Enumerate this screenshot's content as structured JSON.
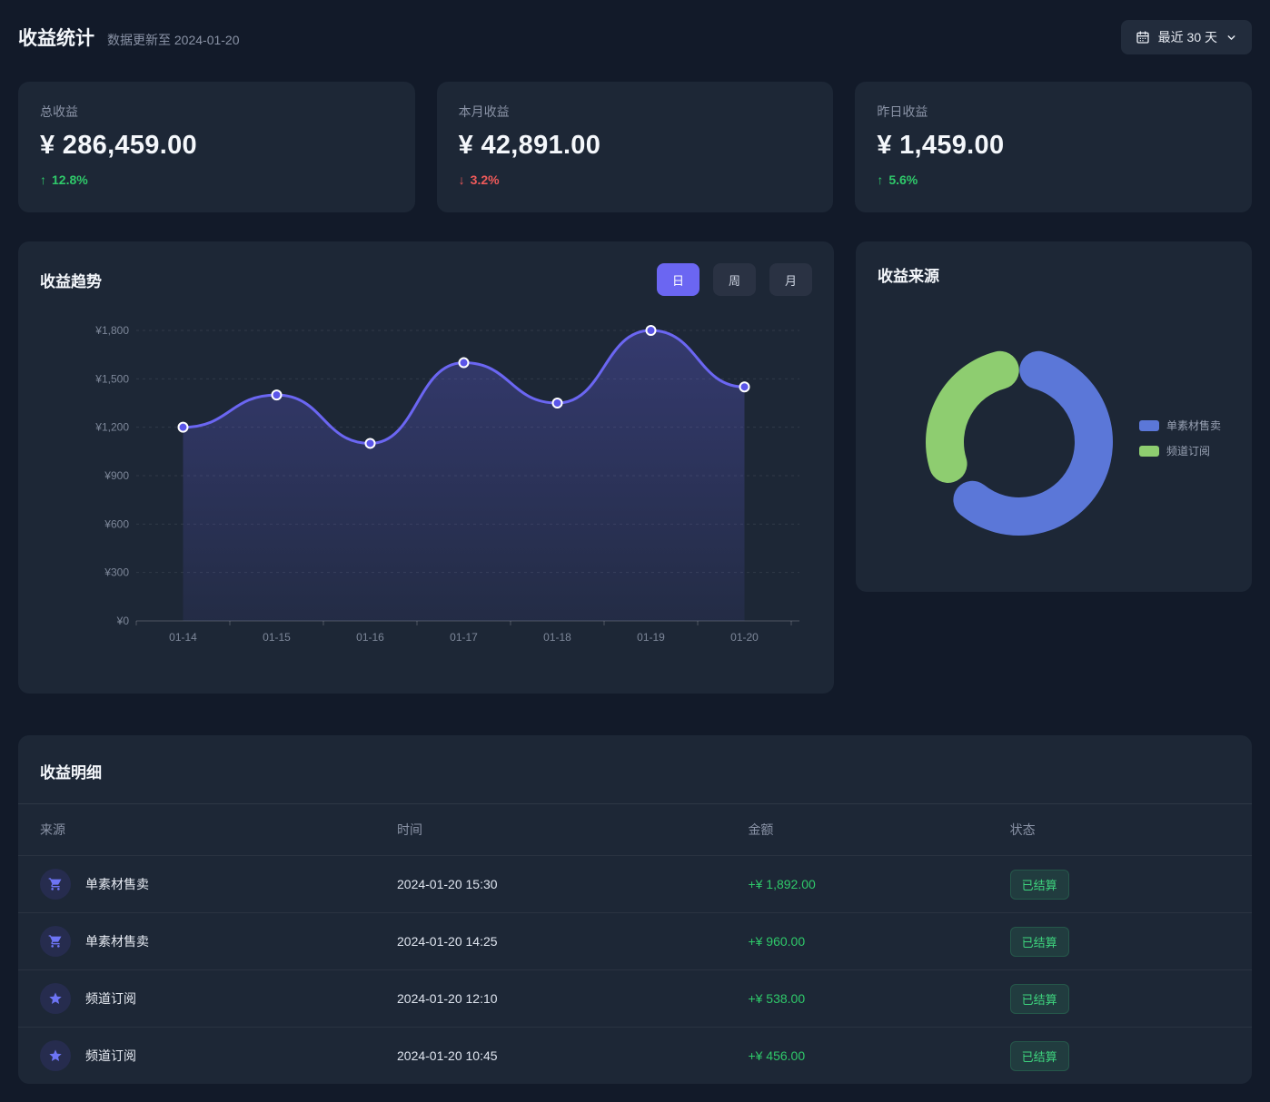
{
  "header": {
    "title": "收益统计",
    "subtitle": "数据更新至 2024-01-20",
    "range_button": {
      "label": "最近 30 天"
    }
  },
  "stats": [
    {
      "label": "总收益",
      "value": "¥ 286,459.00",
      "arrow": "↑",
      "delta": "12.8%",
      "direction": "up"
    },
    {
      "label": "本月收益",
      "value": "¥ 42,891.00",
      "arrow": "↓",
      "delta": "3.2%",
      "direction": "down"
    },
    {
      "label": "昨日收益",
      "value": "¥ 1,459.00",
      "arrow": "↑",
      "delta": "5.6%",
      "direction": "up"
    }
  ],
  "trend": {
    "title": "收益趋势",
    "tabs": [
      {
        "label": "日",
        "active": true
      },
      {
        "label": "周",
        "active": false
      },
      {
        "label": "月",
        "active": false
      }
    ]
  },
  "sources": {
    "title": "收益来源"
  },
  "chart_data": [
    {
      "type": "line",
      "title": "收益趋势",
      "x": [
        "01-14",
        "01-15",
        "01-16",
        "01-17",
        "01-18",
        "01-19",
        "01-20"
      ],
      "values": [
        1200,
        1400,
        1100,
        1600,
        1350,
        1800,
        1450
      ],
      "ylim": [
        0,
        1800
      ],
      "ytick_step": 300,
      "ytick_labels": [
        "¥0",
        "¥300",
        "¥600",
        "¥900",
        "¥1,200",
        "¥1,500",
        "¥1,800"
      ],
      "grid": true,
      "smooth": true,
      "legend_position": "none",
      "line_color": "#6b66f2",
      "point_fill": "#5a55e8",
      "point_stroke": "#ffffff",
      "area_color": "#6b66f2"
    },
    {
      "type": "pie",
      "title": "收益来源",
      "donut": true,
      "legend_position": "right",
      "slices": [
        {
          "name": "单素材售卖",
          "color": "#5b77d8",
          "percent_est": 64,
          "start_deg": 2,
          "end_deg": 232
        },
        {
          "name": "频道订阅",
          "color": "#8ecd70",
          "percent_est": 32,
          "start_deg": 240,
          "end_deg": 358
        }
      ]
    }
  ],
  "table": {
    "title": "收益明细",
    "columns": [
      "来源",
      "时间",
      "金额",
      "状态"
    ],
    "rows": [
      {
        "icon": "cart-icon",
        "source": "单素材售卖",
        "time": "2024-01-20 15:30",
        "amount": "+¥ 1,892.00",
        "status": "已结算"
      },
      {
        "icon": "cart-icon",
        "source": "单素材售卖",
        "time": "2024-01-20 14:25",
        "amount": "+¥ 960.00",
        "status": "已结算"
      },
      {
        "icon": "star-icon",
        "source": "频道订阅",
        "time": "2024-01-20 12:10",
        "amount": "+¥ 538.00",
        "status": "已结算"
      },
      {
        "icon": "star-icon",
        "source": "频道订阅",
        "time": "2024-01-20 10:45",
        "amount": "+¥ 456.00",
        "status": "已结算"
      }
    ]
  },
  "colors": {
    "page_bg": "#121a29",
    "card_bg": "#1d2736",
    "accent_indigo": "#6b66f2",
    "donut_blue": "#5b77d8",
    "donut_green": "#8ecd70",
    "up_green": "#2fc96a",
    "down_red": "#ee5a5a",
    "badge_green": "#3ed47e"
  }
}
